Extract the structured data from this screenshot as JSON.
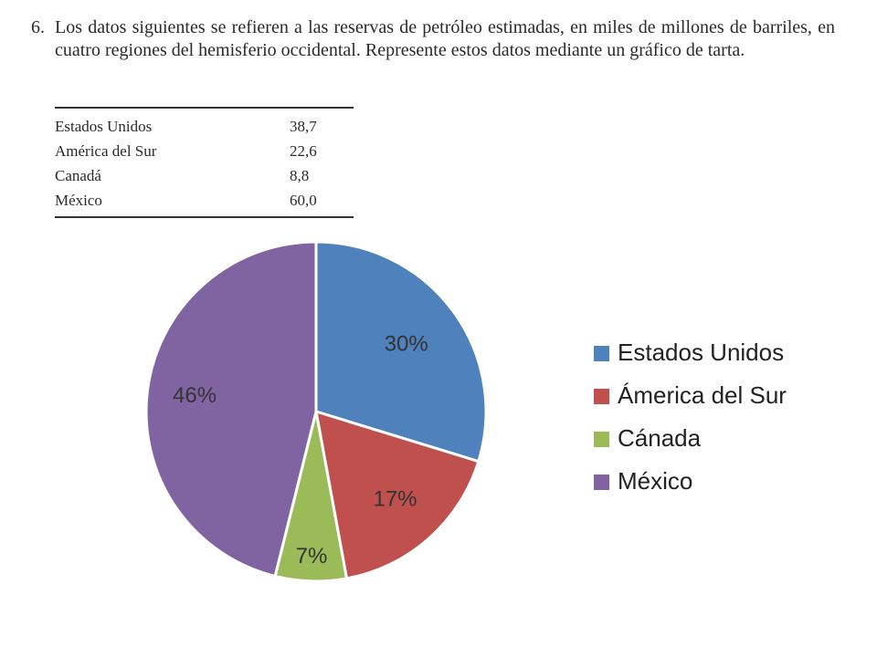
{
  "problem": {
    "number": "6.",
    "text": "Los datos siguientes se refieren a las reservas de petróleo estimadas, en miles de millones de barriles, en cuatro regiones del hemisferio occidental. Represente estos datos mediante un gráfico de tarta."
  },
  "table": {
    "rows": [
      {
        "region": "Estados Unidos",
        "value": "38,7"
      },
      {
        "region": "América del Sur",
        "value": "22,6"
      },
      {
        "region": "Canadá",
        "value": "8,8"
      },
      {
        "region": "México",
        "value": "60,0"
      }
    ]
  },
  "chart_data": {
    "type": "pie",
    "categories": [
      "Estados Unidos",
      "Ámerica del Sur",
      "Cánada",
      "México"
    ],
    "values": [
      38.7,
      22.6,
      8.8,
      60.0
    ],
    "data_labels": [
      "30%",
      "17%",
      "7%",
      "46%"
    ],
    "colors": [
      "#4f81bd",
      "#c0504d",
      "#9bbb59",
      "#8064a2"
    ],
    "start_angle_deg": 0,
    "direction": "clockwise",
    "legend_position": "right",
    "title": "",
    "xlabel": "",
    "ylabel": ""
  }
}
